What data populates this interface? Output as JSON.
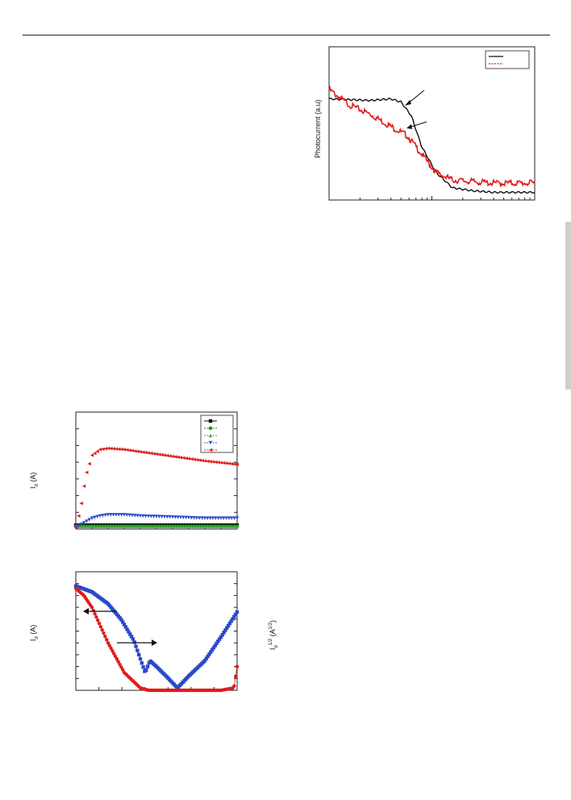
{
  "page": {
    "header_rule": true,
    "sidebar_marker": true
  },
  "figures": {
    "photocurrent": {
      "ylabel": "Photocurrent (a.u)",
      "legend_entries": [
        "",
        ""
      ],
      "colors": {
        "series_a": "#111111",
        "series_b": "#e11b1b"
      }
    },
    "output": {
      "ylabel_main": "I",
      "ylabel_sub": "d",
      "ylabel_unit": " (A)",
      "colors": [
        "#111111",
        "#1a8a1a",
        "#36b236",
        "#2a49c8",
        "#e11b1b"
      ]
    },
    "transfer": {
      "ylabel_main": "I",
      "ylabel_sub": "d",
      "ylabel_unit": " (A)",
      "right_label_main": "I",
      "right_label_sub": "d",
      "right_label_sup": "1/2",
      "right_label_unit_open": " (A",
      "right_label_unit_sup": "1/2",
      "right_label_unit_close": ")",
      "colors": {
        "blue": "#2a49c8",
        "red": "#e11b1b"
      }
    }
  },
  "chart_data": [
    {
      "type": "line",
      "title": "",
      "xlabel": "",
      "ylabel": "Photocurrent (a.u)",
      "xscale": "log",
      "legend": "top-right",
      "x_unit_note": "normalized position along log axis",
      "series": [
        {
          "color": "#111111",
          "x": [
            0,
            0.2,
            0.3,
            0.35,
            0.4,
            0.45,
            0.52,
            0.6,
            0.7,
            0.8,
            1.0
          ],
          "values": [
            0.66,
            0.65,
            0.66,
            0.64,
            0.55,
            0.35,
            0.18,
            0.08,
            0.06,
            0.05,
            0.05
          ]
        },
        {
          "color": "#e11b1b",
          "x": [
            0,
            0.1,
            0.2,
            0.3,
            0.38,
            0.45,
            0.52,
            0.6,
            0.7,
            0.8,
            1.0
          ],
          "values": [
            0.72,
            0.62,
            0.56,
            0.48,
            0.42,
            0.3,
            0.18,
            0.13,
            0.12,
            0.11,
            0.11
          ]
        }
      ]
    },
    {
      "type": "scatter",
      "title": "",
      "xlabel": "",
      "ylabel": "Id (A)",
      "legend": "top-right",
      "series": [
        {
          "color": "#111111",
          "marker": "square",
          "x": [
            0,
            0.2,
            0.4,
            0.6,
            0.8,
            1.0
          ],
          "values": [
            0.02,
            0.02,
            0.02,
            0.02,
            0.02,
            0.02
          ]
        },
        {
          "color": "#1a8a1a",
          "marker": "circle",
          "x": [
            0,
            0.2,
            0.4,
            0.6,
            0.8,
            1.0
          ],
          "values": [
            0.01,
            0.01,
            0.01,
            0.01,
            0.01,
            0.01
          ]
        },
        {
          "color": "#36b236",
          "marker": "triangle-up",
          "x": [
            0,
            0.2,
            0.4,
            0.6,
            0.8,
            1.0
          ],
          "values": [
            0.01,
            0.01,
            0.01,
            0.01,
            0.01,
            0.01
          ]
        },
        {
          "color": "#2a49c8",
          "marker": "triangle-down",
          "x": [
            0,
            0.05,
            0.1,
            0.15,
            0.2,
            0.3,
            0.4,
            0.6,
            0.8,
            1.0
          ],
          "values": [
            0.0,
            0.04,
            0.08,
            0.1,
            0.11,
            0.11,
            0.1,
            0.09,
            0.08,
            0.08
          ]
        },
        {
          "color": "#e11b1b",
          "marker": "triangle-left",
          "x": [
            0,
            0.03,
            0.06,
            0.1,
            0.15,
            0.2,
            0.3,
            0.4,
            0.6,
            0.8,
            1.0
          ],
          "values": [
            0.0,
            0.18,
            0.45,
            0.63,
            0.68,
            0.69,
            0.68,
            0.66,
            0.62,
            0.58,
            0.55
          ]
        }
      ]
    },
    {
      "type": "scatter",
      "title": "",
      "xlabel": "",
      "ylabel": "Id (A)",
      "y2label": "Id^1/2 (A^1/2)",
      "series": [
        {
          "color": "#2a49c8",
          "marker": "square",
          "x": [
            0,
            0.1,
            0.2,
            0.28,
            0.36,
            0.43,
            0.46,
            0.5,
            0.56,
            0.63,
            0.7,
            0.8,
            0.9,
            1.0
          ],
          "values": [
            0.88,
            0.83,
            0.73,
            0.6,
            0.42,
            0.15,
            0.25,
            0.2,
            0.12,
            0.02,
            0.12,
            0.25,
            0.45,
            0.66
          ]
        },
        {
          "color": "#e11b1b",
          "marker": "circle",
          "x": [
            0,
            0.05,
            0.1,
            0.15,
            0.2,
            0.3,
            0.4,
            0.45,
            0.5,
            0.7,
            0.9,
            0.98,
            1.0
          ],
          "values": [
            0.86,
            0.8,
            0.7,
            0.55,
            0.4,
            0.15,
            0.02,
            0.0,
            0.0,
            0.0,
            0.0,
            0.02,
            0.2
          ]
        }
      ]
    }
  ]
}
